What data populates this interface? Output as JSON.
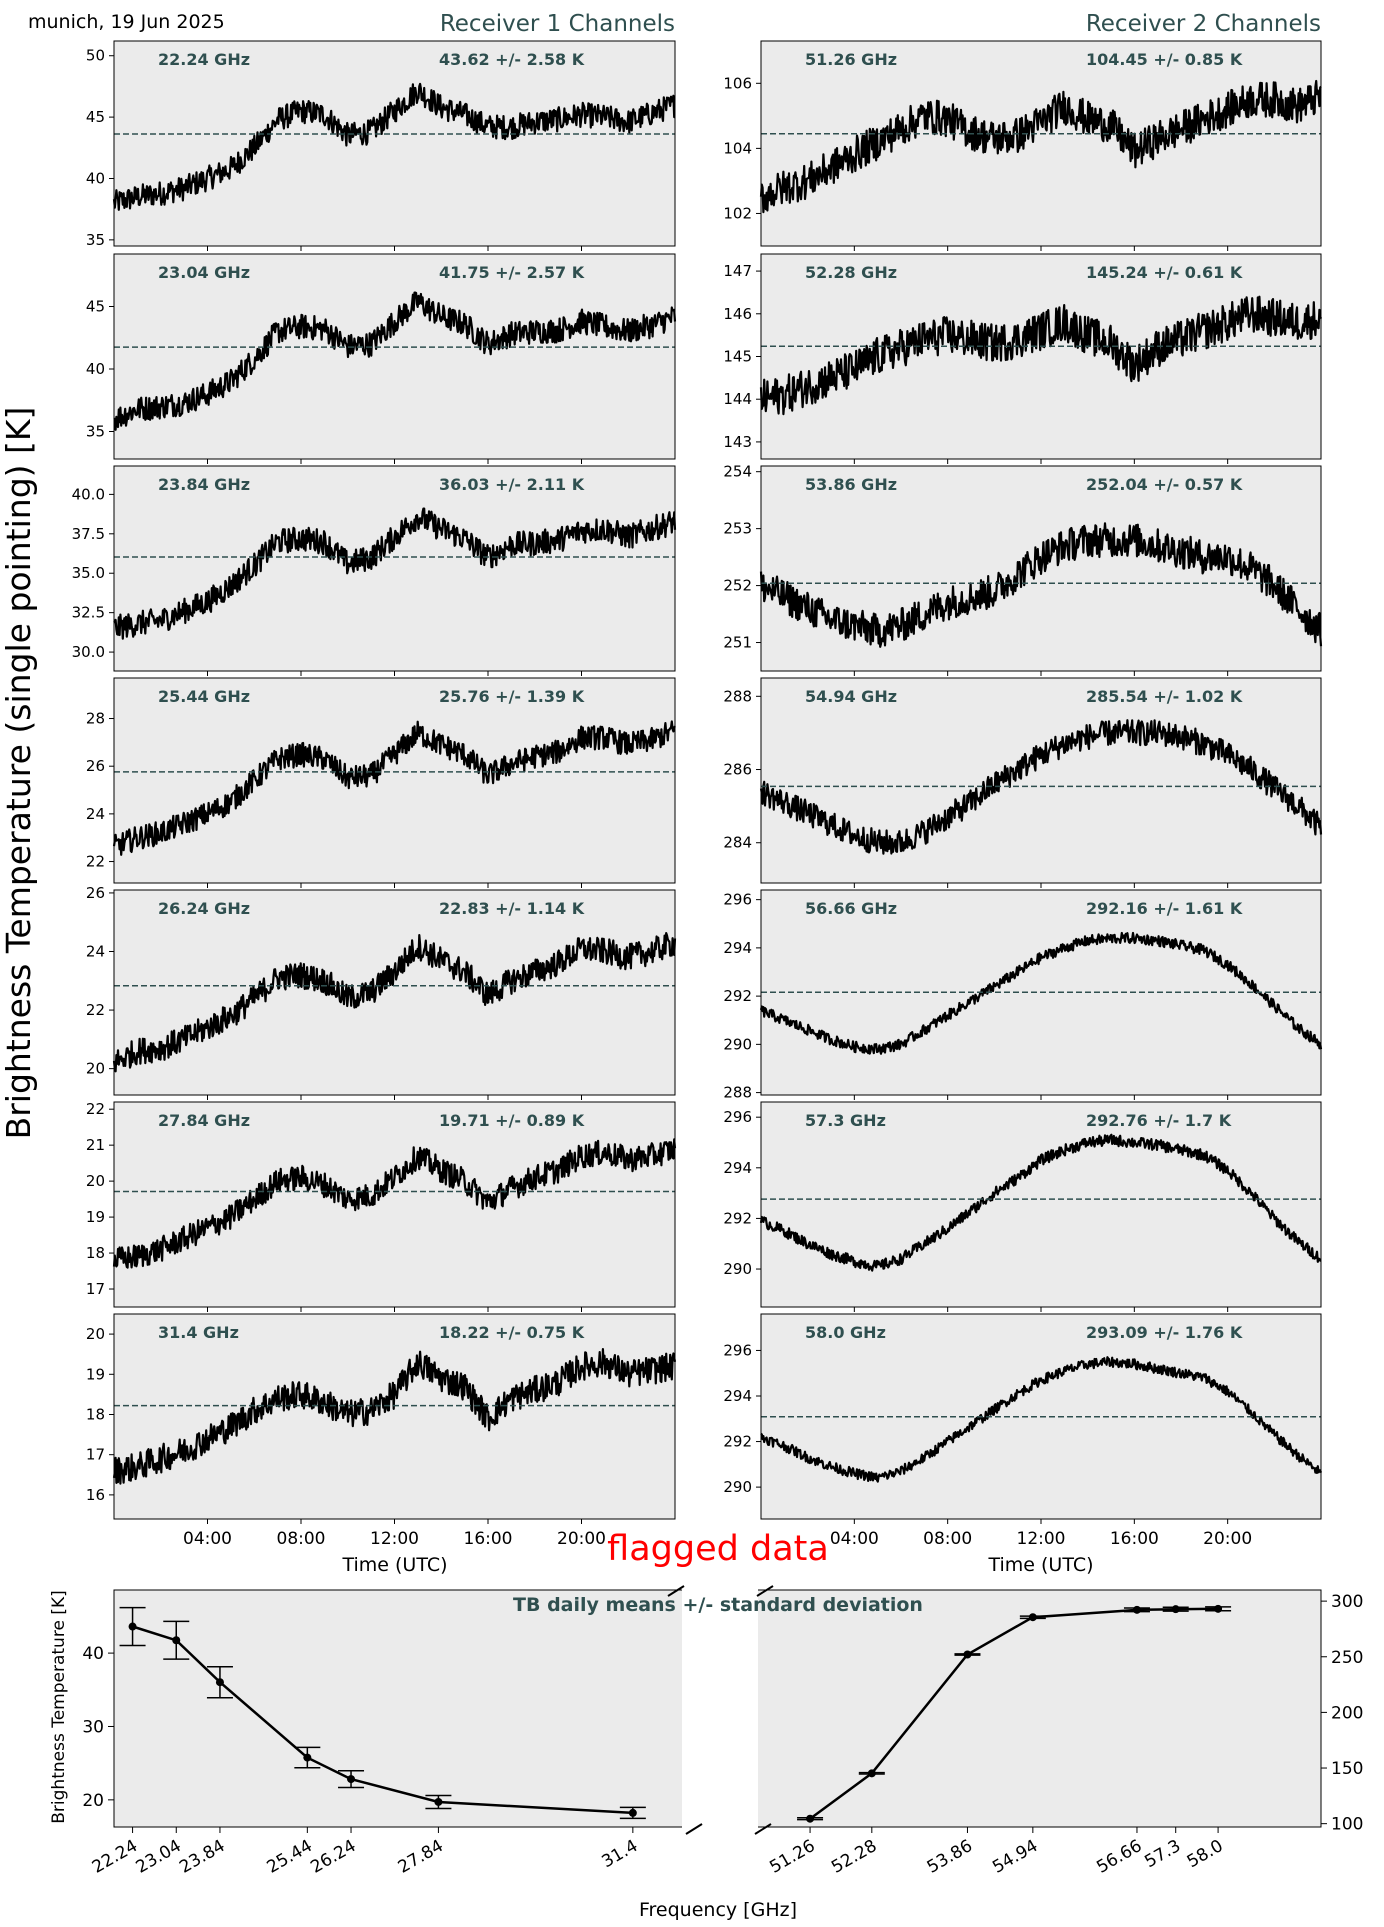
{
  "header": {
    "location_date": "munich, 19 Jun 2025",
    "receiver1_title": "Receiver 1 Channels",
    "receiver2_title": "Receiver 2 Channels",
    "shared_ylabel": "Brightness Temperature (single pointing) [K]",
    "flag_text": "flagged data"
  },
  "colors": {
    "title": "#2f4f4f",
    "panel_bg": "#ebebeb",
    "data": "#000000",
    "mean_line": "#2f4f4f",
    "flag": "#ff0000"
  },
  "chart_data": [
    {
      "type": "line",
      "group": "receiver1",
      "channel": "22.24 GHz",
      "stats": "43.62 +/- 2.58 K",
      "mean": 43.62,
      "ylim": [
        34.5,
        51.2
      ],
      "yticks": [
        35,
        40,
        45,
        50
      ],
      "ytick_labels": [
        "35",
        "40",
        "45",
        "50"
      ],
      "x": [
        0,
        1,
        2,
        3,
        4,
        5,
        6,
        7,
        8,
        9,
        10,
        11,
        12,
        13,
        14,
        15,
        16,
        17,
        18,
        19,
        20,
        21,
        22,
        23,
        24
      ],
      "y": [
        38.0,
        38.5,
        38.8,
        39.2,
        40.0,
        40.8,
        42.5,
        44.8,
        45.5,
        45.2,
        43.5,
        43.8,
        45.5,
        47.2,
        45.8,
        45.2,
        44.2,
        44.2,
        44.6,
        44.8,
        45.2,
        45.0,
        44.6,
        45.3,
        46.0
      ],
      "noise": 1.0
    },
    {
      "type": "line",
      "group": "receiver1",
      "channel": "23.04 GHz",
      "stats": "41.75 +/- 2.57 K",
      "mean": 41.75,
      "ylim": [
        32.8,
        49.2
      ],
      "yticks": [
        35,
        40,
        45
      ],
      "ytick_labels": [
        "35",
        "40",
        "45"
      ],
      "x": [
        0,
        1,
        2,
        3,
        4,
        5,
        6,
        7,
        8,
        9,
        10,
        11,
        12,
        13,
        14,
        15,
        16,
        17,
        18,
        19,
        20,
        21,
        22,
        23,
        24
      ],
      "y": [
        36.0,
        36.8,
        37.0,
        37.3,
        38.0,
        39.0,
        40.8,
        43.0,
        43.4,
        43.2,
        41.8,
        42.0,
        43.8,
        45.4,
        44.2,
        43.6,
        42.0,
        42.8,
        43.0,
        43.1,
        43.8,
        43.4,
        43.0,
        43.5,
        44.2
      ],
      "noise": 1.0
    },
    {
      "type": "line",
      "group": "receiver1",
      "channel": "23.84 GHz",
      "stats": "36.03 +/- 2.11 K",
      "mean": 36.03,
      "ylim": [
        28.8,
        41.8
      ],
      "yticks": [
        30.0,
        32.5,
        35.0,
        37.5,
        40.0
      ],
      "ytick_labels": [
        "30.0",
        "32.5",
        "35.0",
        "37.5",
        "40.0"
      ],
      "x": [
        0,
        1,
        2,
        3,
        4,
        5,
        6,
        7,
        8,
        9,
        10,
        11,
        12,
        13,
        14,
        15,
        16,
        17,
        18,
        19,
        20,
        21,
        22,
        23,
        24
      ],
      "y": [
        31.5,
        31.8,
        32.0,
        32.6,
        33.2,
        34.2,
        35.5,
        37.0,
        37.2,
        37.0,
        35.6,
        36.0,
        37.3,
        38.6,
        37.8,
        37.2,
        36.0,
        36.8,
        36.9,
        37.1,
        37.7,
        37.8,
        37.3,
        37.8,
        38.3
      ],
      "noise": 0.8
    },
    {
      "type": "line",
      "group": "receiver1",
      "channel": "25.44 GHz",
      "stats": "25.76 +/- 1.39 K",
      "mean": 25.76,
      "ylim": [
        21.1,
        29.7
      ],
      "yticks": [
        22,
        24,
        26,
        28
      ],
      "ytick_labels": [
        "22",
        "24",
        "26",
        "28"
      ],
      "x": [
        0,
        1,
        2,
        3,
        4,
        5,
        6,
        7,
        8,
        9,
        10,
        11,
        12,
        13,
        14,
        15,
        16,
        17,
        18,
        19,
        20,
        21,
        22,
        23,
        24
      ],
      "y": [
        22.6,
        23.0,
        23.2,
        23.6,
        24.0,
        24.5,
        25.4,
        26.3,
        26.5,
        26.3,
        25.5,
        25.6,
        26.5,
        27.4,
        26.9,
        26.5,
        25.6,
        26.1,
        26.4,
        26.6,
        27.2,
        27.2,
        26.9,
        27.1,
        27.5
      ],
      "noise": 0.5
    },
    {
      "type": "line",
      "group": "receiver1",
      "channel": "26.24 GHz",
      "stats": "22.83 +/- 1.14 K",
      "mean": 22.83,
      "ylim": [
        19.1,
        26.1
      ],
      "yticks": [
        20,
        22,
        24,
        26
      ],
      "ytick_labels": [
        "20",
        "22",
        "24",
        "26"
      ],
      "x": [
        0,
        1,
        2,
        3,
        4,
        5,
        6,
        7,
        8,
        9,
        10,
        11,
        12,
        13,
        14,
        15,
        16,
        17,
        18,
        19,
        20,
        21,
        22,
        23,
        24
      ],
      "y": [
        20.2,
        20.6,
        20.7,
        21.0,
        21.4,
        21.8,
        22.4,
        23.1,
        23.2,
        23.0,
        22.4,
        22.6,
        23.3,
        24.2,
        23.7,
        23.3,
        22.5,
        23.0,
        23.3,
        23.6,
        24.1,
        24.0,
        23.8,
        24.0,
        24.3
      ],
      "noise": 0.45
    },
    {
      "type": "line",
      "group": "receiver1",
      "channel": "27.84 GHz",
      "stats": "19.71 +/- 0.89 K",
      "mean": 19.71,
      "ylim": [
        16.5,
        22.2
      ],
      "yticks": [
        17,
        18,
        19,
        20,
        21,
        22
      ],
      "ytick_labels": [
        "17",
        "18",
        "19",
        "20",
        "21",
        "22"
      ],
      "x": [
        0,
        1,
        2,
        3,
        4,
        5,
        6,
        7,
        8,
        9,
        10,
        11,
        12,
        13,
        14,
        15,
        16,
        17,
        18,
        19,
        20,
        21,
        22,
        23,
        24
      ],
      "y": [
        17.8,
        17.9,
        18.1,
        18.4,
        18.7,
        19.0,
        19.5,
        20.0,
        20.1,
        19.9,
        19.5,
        19.6,
        20.1,
        20.7,
        20.3,
        20.0,
        19.4,
        19.8,
        20.1,
        20.3,
        20.7,
        20.8,
        20.6,
        20.7,
        20.9
      ],
      "noise": 0.35
    },
    {
      "type": "line",
      "group": "receiver1",
      "channel": "31.4 GHz",
      "stats": "18.22 +/- 0.75 K",
      "mean": 18.22,
      "ylim": [
        15.4,
        20.5
      ],
      "yticks": [
        16,
        17,
        18,
        19,
        20
      ],
      "ytick_labels": [
        "16",
        "17",
        "18",
        "19",
        "20"
      ],
      "x": [
        0,
        1,
        2,
        3,
        4,
        5,
        6,
        7,
        8,
        9,
        10,
        11,
        12,
        13,
        14,
        15,
        16,
        17,
        18,
        19,
        20,
        21,
        22,
        23,
        24
      ],
      "y": [
        16.6,
        16.7,
        16.9,
        17.1,
        17.4,
        17.7,
        18.1,
        18.4,
        18.5,
        18.3,
        18.0,
        18.1,
        18.5,
        19.3,
        18.9,
        18.7,
        17.9,
        18.4,
        18.6,
        18.8,
        19.2,
        19.3,
        19.0,
        19.1,
        19.2
      ],
      "noise": 0.35
    },
    {
      "type": "line",
      "group": "receiver2",
      "channel": "51.26 GHz",
      "stats": "104.45 +/- 0.85 K",
      "mean": 104.45,
      "ylim": [
        101.0,
        107.3
      ],
      "yticks": [
        102,
        104,
        106
      ],
      "ytick_labels": [
        "102",
        "104",
        "106"
      ],
      "x": [
        0,
        1,
        2,
        3,
        4,
        5,
        6,
        7,
        8,
        9,
        10,
        11,
        12,
        13,
        14,
        15,
        16,
        17,
        18,
        19,
        20,
        21,
        22,
        23,
        24
      ],
      "y": [
        102.5,
        102.8,
        103.0,
        103.4,
        103.8,
        104.2,
        104.6,
        105.0,
        104.9,
        104.5,
        104.3,
        104.4,
        104.8,
        105.3,
        104.9,
        104.7,
        103.9,
        104.3,
        104.6,
        104.9,
        105.2,
        105.5,
        105.5,
        105.3,
        105.6
      ],
      "noise": 0.55
    },
    {
      "type": "line",
      "group": "receiver2",
      "channel": "52.28 GHz",
      "stats": "145.24 +/- 0.61 K",
      "mean": 145.24,
      "ylim": [
        142.6,
        147.4
      ],
      "yticks": [
        143,
        144,
        145,
        146,
        147
      ],
      "ytick_labels": [
        "143",
        "144",
        "145",
        "146",
        "147"
      ],
      "x": [
        0,
        1,
        2,
        3,
        4,
        5,
        6,
        7,
        8,
        9,
        10,
        11,
        12,
        13,
        14,
        15,
        16,
        17,
        18,
        19,
        20,
        21,
        22,
        23,
        24
      ],
      "y": [
        144.0,
        144.1,
        144.3,
        144.5,
        144.7,
        145.0,
        145.2,
        145.4,
        145.5,
        145.4,
        145.3,
        145.4,
        145.6,
        145.8,
        145.5,
        145.3,
        144.8,
        145.2,
        145.4,
        145.6,
        145.8,
        146.0,
        145.9,
        145.8,
        145.9
      ],
      "noise": 0.45
    },
    {
      "type": "line",
      "group": "receiver2",
      "channel": "53.86 GHz",
      "stats": "252.04 +/- 0.57 K",
      "mean": 252.04,
      "ylim": [
        250.5,
        254.1
      ],
      "yticks": [
        251,
        252,
        253,
        254
      ],
      "ytick_labels": [
        "251",
        "252",
        "253",
        "254"
      ],
      "x": [
        0,
        1,
        2,
        3,
        4,
        5,
        6,
        7,
        8,
        9,
        10,
        11,
        12,
        13,
        14,
        15,
        16,
        17,
        18,
        19,
        20,
        21,
        22,
        23,
        24
      ],
      "y": [
        252.0,
        251.8,
        251.6,
        251.4,
        251.3,
        251.2,
        251.3,
        251.5,
        251.7,
        251.8,
        251.9,
        252.2,
        252.5,
        252.7,
        252.8,
        252.8,
        252.8,
        252.7,
        252.6,
        252.5,
        252.5,
        252.3,
        252.0,
        251.6,
        251.2
      ],
      "noise": 0.3
    },
    {
      "type": "line",
      "group": "receiver2",
      "channel": "54.94 GHz",
      "stats": "285.54 +/- 1.02 K",
      "mean": 285.54,
      "ylim": [
        282.9,
        288.5
      ],
      "yticks": [
        284,
        286,
        288
      ],
      "ytick_labels": [
        "284",
        "286",
        "288"
      ],
      "x": [
        0,
        1,
        2,
        3,
        4,
        5,
        6,
        7,
        8,
        9,
        10,
        11,
        12,
        13,
        14,
        15,
        16,
        17,
        18,
        19,
        20,
        21,
        22,
        23,
        24
      ],
      "y": [
        285.4,
        285.1,
        284.8,
        284.5,
        284.2,
        284.0,
        284.0,
        284.3,
        284.7,
        285.1,
        285.6,
        286.0,
        286.4,
        286.7,
        286.9,
        287.0,
        287.0,
        287.0,
        286.9,
        286.7,
        286.4,
        286.0,
        285.5,
        285.0,
        284.4
      ],
      "noise": 0.35
    },
    {
      "type": "line",
      "group": "receiver2",
      "channel": "56.66 GHz",
      "stats": "292.16 +/- 1.61 K",
      "mean": 292.16,
      "ylim": [
        287.9,
        296.4
      ],
      "yticks": [
        288,
        290,
        292,
        294,
        296
      ],
      "ytick_labels": [
        "288",
        "290",
        "292",
        "294",
        "296"
      ],
      "x": [
        0,
        1,
        2,
        3,
        4,
        5,
        6,
        7,
        8,
        9,
        10,
        11,
        12,
        13,
        14,
        15,
        16,
        17,
        18,
        19,
        20,
        21,
        22,
        23,
        24
      ],
      "y": [
        291.4,
        291.0,
        290.6,
        290.2,
        289.9,
        289.8,
        290.0,
        290.6,
        291.2,
        291.8,
        292.4,
        293.0,
        293.6,
        294.0,
        294.3,
        294.4,
        294.4,
        294.3,
        294.1,
        293.9,
        293.3,
        292.5,
        291.6,
        290.7,
        290.0
      ],
      "noise": 0.22
    },
    {
      "type": "line",
      "group": "receiver2",
      "channel": "57.3 GHz",
      "stats": "292.76 +/- 1.7 K",
      "mean": 292.76,
      "ylim": [
        288.5,
        296.6
      ],
      "yticks": [
        290,
        292,
        294,
        296
      ],
      "ytick_labels": [
        "290",
        "292",
        "294",
        "296"
      ],
      "x": [
        0,
        1,
        2,
        3,
        4,
        5,
        6,
        7,
        8,
        9,
        10,
        11,
        12,
        13,
        14,
        15,
        16,
        17,
        18,
        19,
        20,
        21,
        22,
        23,
        24
      ],
      "y": [
        291.9,
        291.5,
        291.0,
        290.6,
        290.3,
        290.1,
        290.4,
        291.0,
        291.6,
        292.3,
        293.0,
        293.6,
        294.3,
        294.7,
        295.0,
        295.1,
        295.0,
        294.9,
        294.7,
        294.5,
        293.9,
        293.0,
        292.0,
        291.1,
        290.4
      ],
      "noise": 0.22
    },
    {
      "type": "line",
      "group": "receiver2",
      "channel": "58.0 GHz",
      "stats": "293.09 +/- 1.76 K",
      "mean": 293.09,
      "ylim": [
        288.6,
        297.6
      ],
      "yticks": [
        290,
        292,
        294,
        296
      ],
      "ytick_labels": [
        "290",
        "292",
        "294",
        "296"
      ],
      "x": [
        0,
        1,
        2,
        3,
        4,
        5,
        6,
        7,
        8,
        9,
        10,
        11,
        12,
        13,
        14,
        15,
        16,
        17,
        18,
        19,
        20,
        21,
        22,
        23,
        24
      ],
      "y": [
        292.2,
        291.8,
        291.3,
        290.9,
        290.6,
        290.4,
        290.7,
        291.3,
        292.0,
        292.7,
        293.4,
        294.1,
        294.7,
        295.1,
        295.4,
        295.5,
        295.4,
        295.2,
        295.0,
        294.8,
        294.2,
        293.3,
        292.3,
        291.4,
        290.6
      ],
      "noise": 0.22
    },
    {
      "type": "line",
      "group": "summary",
      "title": "TB daily means +/- standard deviation",
      "xlabel": "Frequency [GHz]",
      "ylabel": "Brightness Temperature [K]",
      "left": {
        "categories": [
          "22.24",
          "23.04",
          "23.84",
          "25.44",
          "26.24",
          "27.84",
          "31.4"
        ],
        "x": [
          22.24,
          23.04,
          23.84,
          25.44,
          26.24,
          27.84,
          31.4
        ],
        "values": [
          43.62,
          41.75,
          36.03,
          25.76,
          22.83,
          19.71,
          18.22
        ],
        "errors": [
          2.58,
          2.57,
          2.11,
          1.39,
          1.14,
          0.89,
          0.75
        ],
        "xlim": [
          21.9,
          32.3
        ],
        "ylim": [
          16.3,
          48.6
        ],
        "yticks": [
          20,
          30,
          40
        ],
        "ytick_labels": [
          "20",
          "30",
          "40"
        ]
      },
      "right": {
        "categories": [
          "51.26",
          "52.28",
          "53.86",
          "54.94",
          "56.66",
          "57.3",
          "58.0"
        ],
        "x": [
          51.26,
          52.28,
          53.86,
          54.94,
          56.66,
          57.3,
          58.0
        ],
        "values": [
          104.45,
          145.24,
          252.04,
          285.54,
          292.16,
          292.76,
          293.09
        ],
        "errors": [
          0.85,
          0.61,
          0.57,
          1.02,
          1.61,
          1.7,
          1.76
        ],
        "xlim": [
          50.4,
          59.7
        ],
        "ylim": [
          97,
          310
        ],
        "yticks": [
          100,
          150,
          200,
          250,
          300
        ],
        "ytick_labels": [
          "100",
          "150",
          "200",
          "250",
          "300"
        ]
      }
    }
  ],
  "time_axis": {
    "xlabel": "Time (UTC)",
    "xlim": [
      0,
      24
    ],
    "ticks": [
      4,
      8,
      12,
      16,
      20
    ],
    "tick_labels": [
      "04:00",
      "08:00",
      "12:00",
      "16:00",
      "20:00"
    ]
  }
}
